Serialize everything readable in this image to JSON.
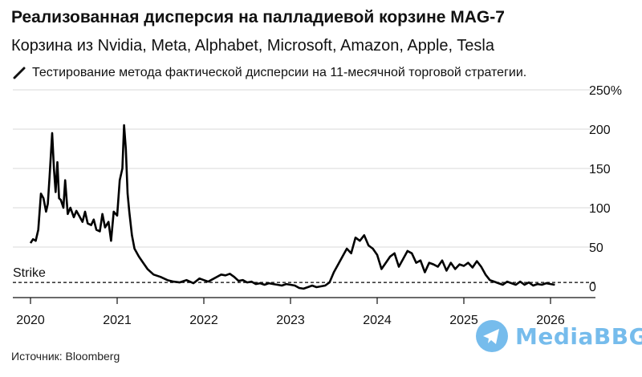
{
  "title": "Реализованная дисперсия на палладиевой корзине MAG-7",
  "subtitle": "Корзина из Nvidia, Meta, Alphabet, Microsoft, Amazon, Apple, Tesla",
  "note": "Тестирование метода фактической дисперсии на 11-месячной торговой стратегии.",
  "source": "Источник: Bloomberg",
  "watermark": "MediaBBG",
  "icons": {
    "note": "pencil-icon",
    "watermark": "telegram-icon"
  },
  "colors": {
    "line": "#000000",
    "strike": "#000000",
    "watermark": "#49a6e6"
  },
  "chart_data": {
    "type": "line",
    "title": "Реализованная дисперсия на палладиевой корзине MAG-7",
    "subtitle": "Корзина из Nvidia, Meta, Alphabet, Microsoft, Amazon, Apple, Tesla",
    "ylim": [
      0,
      250
    ],
    "xlim": [
      2019.85,
      2026.35
    ],
    "y_ticks": [
      0,
      50,
      100,
      150,
      200,
      250
    ],
    "y_tick_labels": [
      "0",
      "50",
      "100",
      "150",
      "200",
      "250%"
    ],
    "x_ticks": [
      2020,
      2021,
      2022,
      2023,
      2024,
      2025,
      2026
    ],
    "x_tick_labels": [
      "2020",
      "2021",
      "2022",
      "2023",
      "2024",
      "2025",
      "2026"
    ],
    "grid": "horizontal",
    "strike": {
      "label": "Strike",
      "value": 5
    },
    "series": [
      {
        "x": [
          2020.0,
          2020.03,
          2020.06,
          2020.09,
          2020.12,
          2020.15,
          2020.18,
          2020.2,
          2020.22,
          2020.25,
          2020.27,
          2020.29,
          2020.31,
          2020.33,
          2020.35,
          2020.38,
          2020.4,
          2020.43,
          2020.46,
          2020.5,
          2020.53,
          2020.56,
          2020.6,
          2020.63,
          2020.66,
          2020.7,
          2020.73,
          2020.76,
          2020.8,
          2020.83,
          2020.86,
          2020.9,
          2020.93,
          2020.96,
          2021.0,
          2021.03,
          2021.06,
          2021.08,
          2021.1,
          2021.12,
          2021.14,
          2021.17,
          2021.2,
          2021.25,
          2021.3,
          2021.35,
          2021.42,
          2021.5,
          2021.58,
          2021.65,
          2021.72,
          2021.8,
          2021.88,
          2021.95,
          2022.0,
          2022.05,
          2022.1,
          2022.15,
          2022.2,
          2022.25,
          2022.3,
          2022.35,
          2022.4,
          2022.45,
          2022.5,
          2022.55,
          2022.6,
          2022.65,
          2022.7,
          2022.75,
          2022.8,
          2022.85,
          2022.9,
          2022.95,
          2023.0,
          2023.05,
          2023.1,
          2023.15,
          2023.2,
          2023.25,
          2023.3,
          2023.35,
          2023.4,
          2023.45,
          2023.5,
          2023.55,
          2023.6,
          2023.65,
          2023.7,
          2023.75,
          2023.8,
          2023.85,
          2023.9,
          2023.95,
          2024.0,
          2024.05,
          2024.1,
          2024.15,
          2024.2,
          2024.25,
          2024.3,
          2024.35,
          2024.4,
          2024.45,
          2024.5,
          2024.55,
          2024.6,
          2024.65,
          2024.7,
          2024.75,
          2024.8,
          2024.85,
          2024.9,
          2024.95,
          2025.0,
          2025.05,
          2025.1,
          2025.15,
          2025.2,
          2025.25,
          2025.3,
          2025.35,
          2025.4,
          2025.45,
          2025.5,
          2025.55,
          2025.6,
          2025.65,
          2025.7,
          2025.75,
          2025.8,
          2025.85,
          2025.9,
          2025.95,
          2026.0,
          2026.05
        ],
        "values": [
          55,
          60,
          58,
          72,
          118,
          112,
          95,
          105,
          140,
          195,
          150,
          120,
          158,
          112,
          110,
          100,
          135,
          92,
          100,
          88,
          96,
          90,
          82,
          95,
          80,
          78,
          85,
          72,
          70,
          92,
          75,
          82,
          58,
          95,
          90,
          135,
          150,
          205,
          175,
          118,
          95,
          65,
          48,
          38,
          30,
          22,
          15,
          12,
          8,
          6,
          5,
          8,
          4,
          10,
          8,
          6,
          9,
          12,
          15,
          14,
          16,
          12,
          7,
          8,
          5,
          6,
          3,
          4,
          2,
          4,
          3,
          2,
          1,
          3,
          2,
          1,
          -2,
          -3,
          -1,
          1,
          -1,
          0,
          1,
          5,
          18,
          28,
          38,
          48,
          42,
          62,
          58,
          65,
          52,
          48,
          40,
          22,
          30,
          38,
          42,
          25,
          35,
          45,
          42,
          30,
          33,
          18,
          30,
          28,
          25,
          33,
          20,
          30,
          22,
          28,
          26,
          30,
          24,
          32,
          25,
          15,
          8,
          6,
          4,
          2,
          6,
          4,
          2,
          6,
          2,
          5,
          1,
          3,
          2,
          4,
          3,
          2
        ]
      }
    ]
  }
}
